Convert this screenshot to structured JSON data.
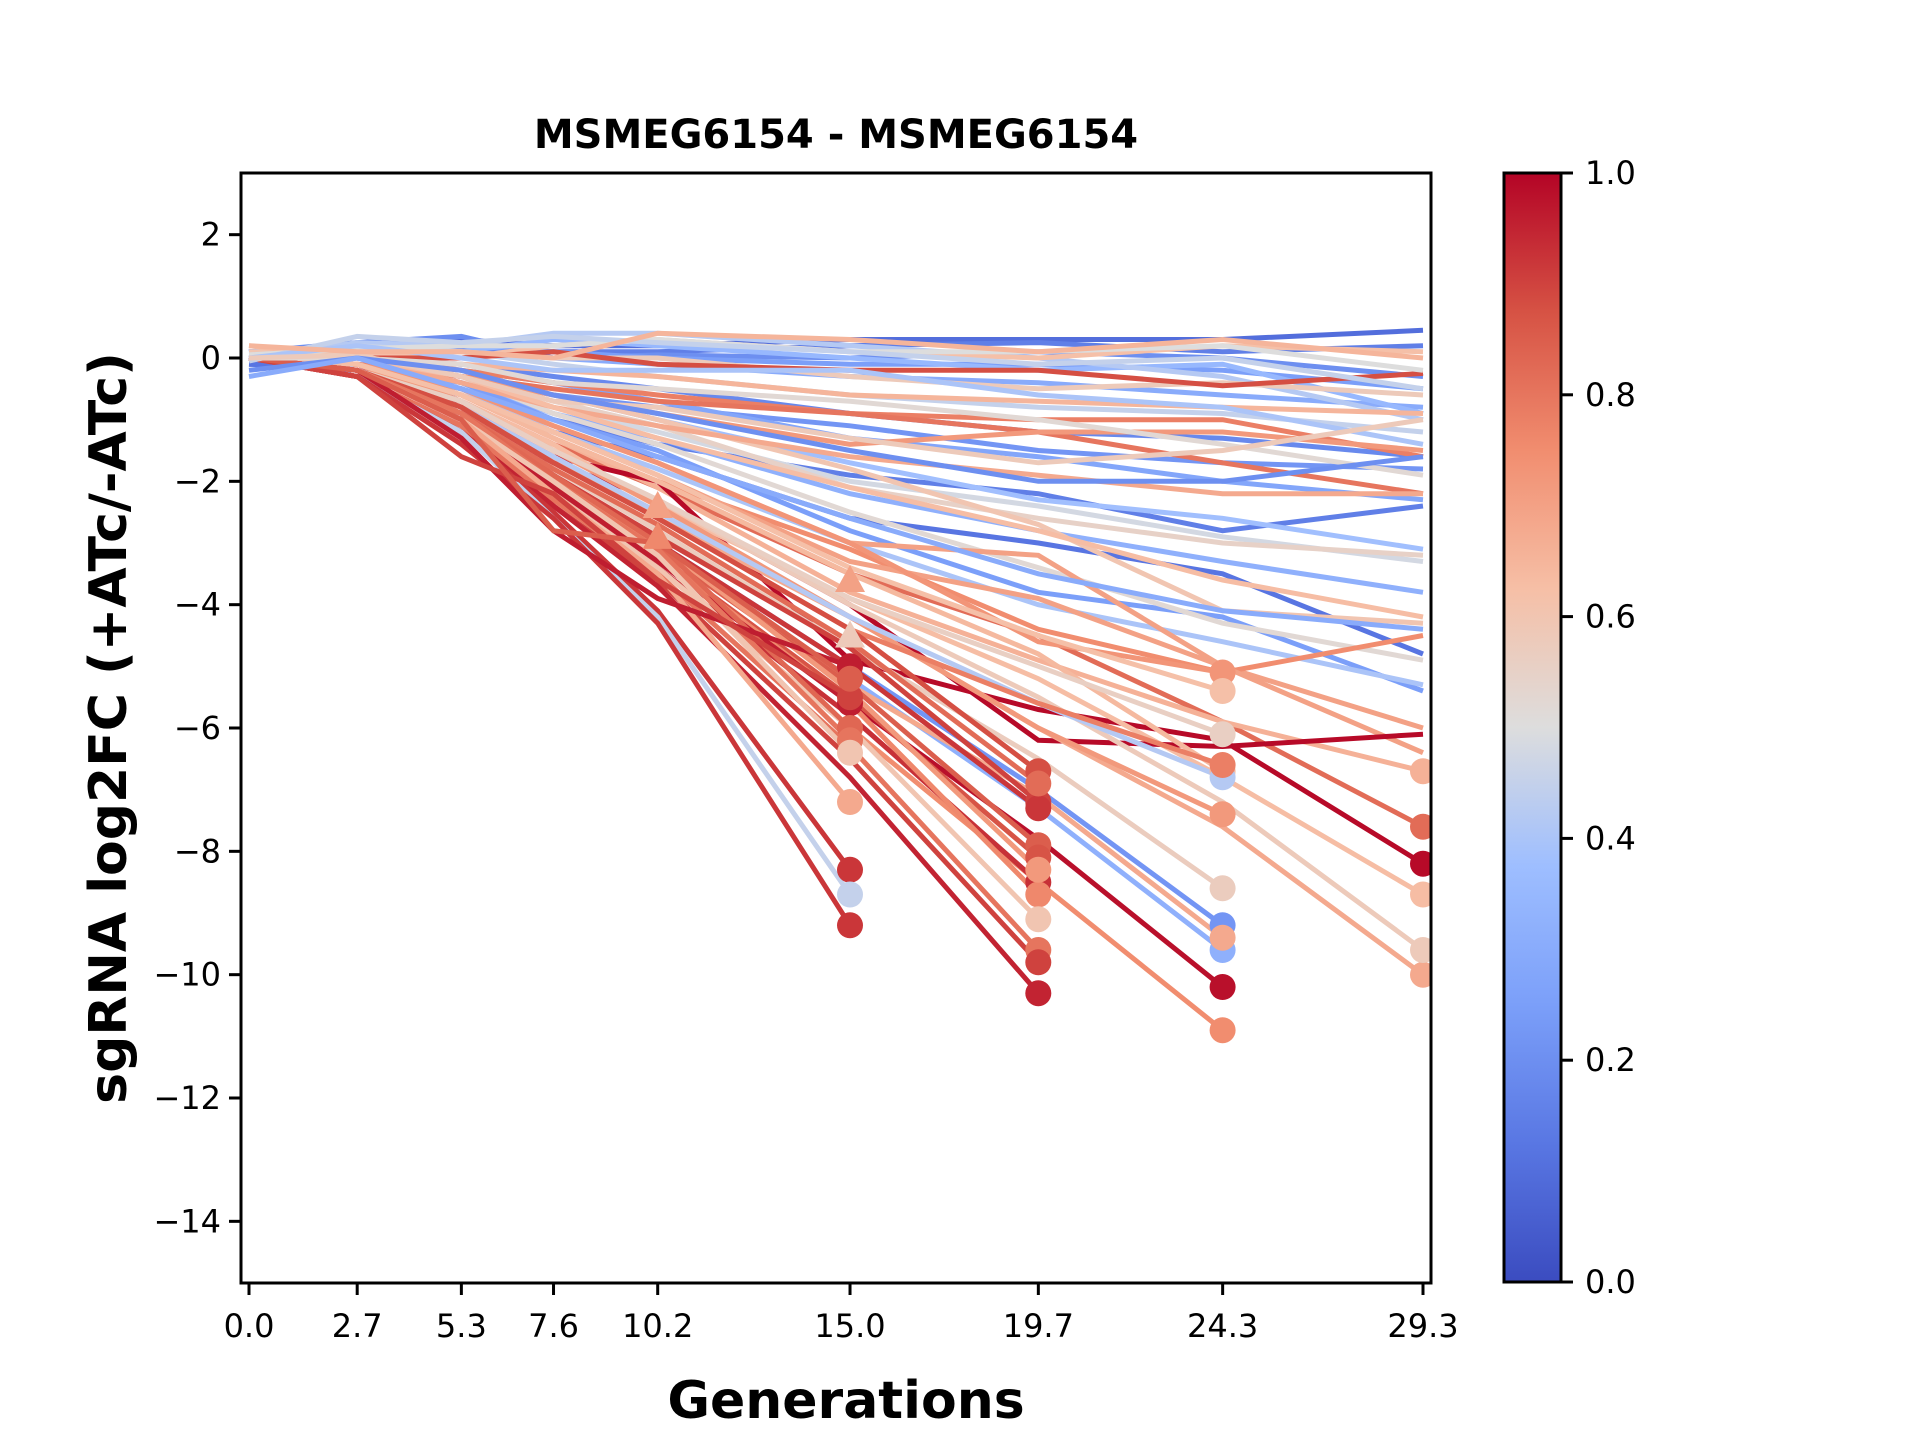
{
  "chart_data": {
    "type": "line",
    "title": "MSMEG6154 - MSMEG6154",
    "xlabel": "Generations",
    "ylabel": "sgRNA log2FC (+ATc/-ATc)",
    "x": [
      0.0,
      2.7,
      5.3,
      7.6,
      10.2,
      15.0,
      19.7,
      24.3,
      29.3
    ],
    "xticks": [
      "0.0",
      "2.7",
      "5.3",
      "7.6",
      "10.2",
      "15.0",
      "19.7",
      "24.3",
      "29.3"
    ],
    "xlim": [
      -0.2,
      29.5
    ],
    "ylim": [
      -15,
      3
    ],
    "yticks": [
      2,
      0,
      -2,
      -4,
      -6,
      -8,
      -10,
      -12,
      -14
    ],
    "ytick_labels": [
      "2",
      "0",
      "−2",
      "−4",
      "−6",
      "−8",
      "−10",
      "−12",
      "−14"
    ],
    "grid": false,
    "colorbar": {
      "colormap": "coolwarm",
      "range": [
        0.0,
        1.0
      ],
      "ticks": [
        "0.0",
        "0.2",
        "0.4",
        "0.6",
        "0.8",
        "1.0"
      ],
      "tick_values": [
        0.0,
        0.2,
        0.4,
        0.6,
        0.8,
        1.0
      ],
      "placement": "right"
    },
    "marker_legend": {
      "circle": "series endpoint (dropout)",
      "triangle": "intermediate marker"
    },
    "series": [
      {
        "c": 0.1,
        "values": [
          0.1,
          0.2,
          0.3,
          0.2,
          0.2,
          0.3,
          0.3,
          0.3,
          0.45
        ]
      },
      {
        "c": 0.15,
        "values": [
          0.0,
          0.2,
          0.15,
          0.1,
          0.1,
          0.2,
          0.25,
          0.1,
          0.2
        ]
      },
      {
        "c": 0.2,
        "values": [
          0.1,
          0.25,
          0.35,
          0.0,
          0.05,
          0.0,
          0.1,
          0.0,
          -0.3
        ]
      },
      {
        "c": 0.25,
        "values": [
          0.1,
          0.2,
          0.2,
          0.1,
          0.0,
          -0.1,
          -0.1,
          -0.2,
          -0.5
        ]
      },
      {
        "c": 0.3,
        "values": [
          0.0,
          0.1,
          0.1,
          0.0,
          -0.1,
          -0.3,
          -0.4,
          -0.6,
          -0.8
        ]
      },
      {
        "c": 0.35,
        "values": [
          0.1,
          0.2,
          0.1,
          0.3,
          0.2,
          0.0,
          -0.2,
          -0.1,
          -0.9
        ]
      },
      {
        "c": 0.42,
        "values": [
          0.0,
          0.25,
          0.2,
          0.4,
          0.4,
          0.2,
          0.0,
          -0.3,
          -1.0
        ]
      },
      {
        "c": 0.45,
        "values": [
          0.0,
          0.2,
          0.1,
          -0.1,
          -0.3,
          -0.6,
          -0.8,
          -0.9,
          -1.2
        ]
      },
      {
        "c": 0.18,
        "values": [
          0.0,
          0.0,
          -0.1,
          -0.3,
          -0.5,
          -0.9,
          -1.2,
          -1.3,
          -1.6
        ]
      },
      {
        "c": 0.22,
        "values": [
          0.0,
          -0.1,
          -0.3,
          -0.6,
          -0.8,
          -1.1,
          -1.5,
          -1.7,
          -1.8
        ]
      },
      {
        "c": 0.28,
        "values": [
          0.0,
          0.0,
          -0.2,
          -0.4,
          -0.7,
          -1.3,
          -1.6,
          -2.0,
          -2.3
        ]
      },
      {
        "c": 0.15,
        "values": [
          -0.1,
          -0.1,
          -0.5,
          -1.0,
          -1.4,
          -1.9,
          -2.2,
          -2.8,
          -2.4
        ]
      },
      {
        "c": 0.38,
        "values": [
          0.0,
          0.1,
          -0.2,
          -0.6,
          -1.0,
          -1.7,
          -2.3,
          -2.6,
          -3.1
        ]
      },
      {
        "c": 0.48,
        "values": [
          0.0,
          0.0,
          -0.3,
          -0.8,
          -1.2,
          -2.0,
          -2.4,
          -2.9,
          -3.3
        ]
      },
      {
        "c": 0.12,
        "values": [
          -0.1,
          -0.2,
          -0.6,
          -1.2,
          -1.6,
          -2.6,
          -3.0,
          -3.5,
          -4.8
        ]
      },
      {
        "c": 0.32,
        "values": [
          0.0,
          -0.1,
          -0.4,
          -0.9,
          -1.3,
          -2.2,
          -2.8,
          -3.3,
          -3.8
        ]
      },
      {
        "c": 0.55,
        "values": [
          0.0,
          0.1,
          -0.3,
          -0.7,
          -1.1,
          -2.1,
          -2.6,
          -3.0,
          -3.2
        ]
      },
      {
        "c": 0.6,
        "values": [
          0.1,
          0.1,
          -0.2,
          -0.6,
          -1.0,
          -1.8,
          -2.7,
          -4.1,
          -4.3
        ]
      },
      {
        "c": 0.25,
        "values": [
          0.0,
          -0.1,
          -0.4,
          -1.0,
          -1.5,
          -2.8,
          -3.8,
          -4.2,
          -5.4
        ]
      },
      {
        "c": 0.4,
        "values": [
          0.0,
          -0.2,
          -0.5,
          -1.2,
          -1.8,
          -3.0,
          -4.0,
          -4.6,
          -5.3
        ]
      },
      {
        "c": 0.52,
        "values": [
          0.0,
          0.0,
          -0.3,
          -0.9,
          -1.4,
          -2.5,
          -3.4,
          -4.3,
          -4.9
        ]
      },
      {
        "c": 0.62,
        "values": [
          0.0,
          0.1,
          0.0,
          0.2,
          0.3,
          0.1,
          0.0,
          0.2,
          0.1
        ]
      },
      {
        "c": 0.58,
        "values": [
          0.0,
          0.1,
          0.1,
          0.0,
          0.0,
          -0.3,
          -0.5,
          -0.4,
          -0.6
        ]
      },
      {
        "c": 0.65,
        "values": [
          0.0,
          0.0,
          -0.1,
          -0.2,
          -0.3,
          -0.6,
          -0.7,
          -0.8,
          -0.9
        ]
      },
      {
        "c": 0.88,
        "values": [
          0.0,
          0.0,
          0.0,
          0.1,
          -0.1,
          -0.2,
          -0.2,
          -0.45,
          -0.25
        ]
      },
      {
        "c": 0.78,
        "values": [
          0.0,
          0.0,
          -0.2,
          -0.4,
          -0.6,
          -0.9,
          -1.0,
          -1.0,
          -1.6
        ]
      },
      {
        "c": 0.8,
        "values": [
          0.0,
          -0.1,
          -0.3,
          -0.5,
          -0.7,
          -0.9,
          -1.2,
          -1.7,
          -2.2
        ]
      },
      {
        "c": 0.72,
        "values": [
          0.0,
          0.0,
          -0.3,
          -0.6,
          -0.9,
          -1.4,
          -1.2,
          -1.2,
          -1.5
        ]
      },
      {
        "c": 0.68,
        "values": [
          0.0,
          0.0,
          -0.4,
          -0.8,
          -1.1,
          -1.6,
          -1.9,
          -2.2,
          -2.2
        ]
      },
      {
        "c": 0.63,
        "values": [
          0.2,
          0.0,
          -0.3,
          -0.8,
          -1.3,
          -2.1,
          -2.8,
          -3.6,
          -4.2
        ]
      },
      {
        "c": 0.7,
        "values": [
          0.0,
          -0.1,
          -0.5,
          -1.1,
          -1.7,
          -3.0,
          -3.2,
          -5.0,
          -6.0
        ]
      },
      {
        "c": 0.75,
        "values": [
          0.0,
          -0.1,
          -0.6,
          -1.3,
          -2.0,
          -3.1,
          -4.4,
          -5.1,
          -4.5
        ]
      },
      {
        "c": 0.82,
        "values": [
          0.0,
          -0.2,
          -0.7,
          -1.4,
          -2.1,
          -3.5,
          -4.5,
          -5.9,
          -7.6
        ]
      },
      {
        "c": 0.7,
        "values": [
          0.0,
          -0.1,
          -0.6,
          -1.2,
          -1.9,
          -3.3,
          -3.9,
          -5.0,
          -6.4
        ]
      },
      {
        "c": 0.66,
        "values": [
          0.0,
          -0.1,
          -0.6,
          -1.3,
          -2.1,
          -3.8,
          -4.9,
          -5.9,
          -6.7
        ]
      },
      {
        "c": 0.99,
        "values": [
          0.0,
          -0.1,
          -0.8,
          -1.6,
          -2.0,
          -4.9,
          -5.7,
          -6.2,
          -8.2
        ]
      },
      {
        "c": 0.99,
        "values": [
          0.0,
          -0.2,
          -0.9,
          -1.7,
          -2.3,
          -4.0,
          -6.2,
          -6.3,
          -6.1
        ]
      },
      {
        "c": 0.63,
        "values": [
          0.0,
          -0.1,
          -0.7,
          -1.4,
          -2.4,
          -3.9,
          -5.2,
          -6.8,
          -8.7
        ]
      },
      {
        "c": 0.68,
        "values": [
          0.0,
          -0.2,
          -0.8,
          -1.6,
          -2.6,
          -4.2,
          -6.0,
          -7.6,
          -10.0
        ]
      },
      {
        "c": 0.58,
        "values": [
          0.0,
          -0.1,
          -0.7,
          -1.5,
          -2.3,
          -4.0,
          -5.5,
          -7.2,
          -9.6
        ]
      },
      {
        "c": 0.64,
        "values": [
          0.0,
          -0.1,
          -0.6,
          -1.3,
          -2.0,
          -3.5,
          -4.8,
          -6.7
        ]
      },
      {
        "c": 0.72,
        "values": [
          0.0,
          -0.1,
          -0.7,
          -1.5,
          -2.4,
          -4.2,
          -6.0,
          -7.4
        ]
      },
      {
        "c": 0.73,
        "values": [
          0.0,
          -0.1,
          -0.5,
          -1.1,
          -1.7,
          -3.0,
          -4.6,
          -5.1
        ]
      },
      {
        "c": 0.62,
        "values": [
          0.0,
          -0.1,
          -0.6,
          -1.2,
          -1.9,
          -3.4,
          -4.5,
          -5.4
        ]
      },
      {
        "c": 0.56,
        "values": [
          0.0,
          -0.2,
          -0.7,
          -1.5,
          -2.3,
          -3.9,
          -5.0,
          -6.1
        ]
      },
      {
        "c": 0.42,
        "values": [
          0.0,
          -0.2,
          -0.8,
          -1.6,
          -2.5,
          -4.2,
          -5.6,
          -6.8
        ]
      },
      {
        "c": 0.78,
        "values": [
          0.0,
          -0.2,
          -0.8,
          -1.7,
          -2.6,
          -4.4,
          -5.6,
          -6.6
        ]
      },
      {
        "c": 0.57,
        "values": [
          0.0,
          -0.2,
          -0.9,
          -1.8,
          -2.8,
          -4.7,
          -6.5,
          -8.6
        ]
      },
      {
        "c": 0.22,
        "values": [
          0.0,
          -0.2,
          -0.9,
          -1.9,
          -3.0,
          -5.0,
          -7.0,
          -9.2
        ]
      },
      {
        "c": 0.32,
        "values": [
          0.0,
          -0.2,
          -1.0,
          -2.0,
          -3.1,
          -5.2,
          -7.3,
          -9.6
        ]
      },
      {
        "c": 0.68,
        "values": [
          0.0,
          -0.2,
          -0.9,
          -1.9,
          -3.0,
          -5.3,
          -7.1,
          -9.4
        ]
      },
      {
        "c": 0.98,
        "values": [
          0.0,
          -0.2,
          -1.0,
          -2.1,
          -3.2,
          -5.6,
          -7.8,
          -10.2
        ]
      },
      {
        "c": 0.75,
        "values": [
          0.0,
          -0.3,
          -1.1,
          -2.2,
          -3.4,
          -6.0,
          -8.5,
          -10.9
        ]
      },
      {
        "c": 0.88,
        "values": [
          0.0,
          -0.2,
          -0.8,
          -1.7,
          -2.6,
          -4.4,
          -6.7
        ]
      },
      {
        "c": 0.9,
        "values": [
          0.0,
          -0.2,
          -0.9,
          -1.9,
          -2.9,
          -4.7,
          -7.2
        ]
      },
      {
        "c": 0.92,
        "values": [
          0.0,
          -0.2,
          -0.9,
          -1.9,
          -3.0,
          -5.0,
          -7.3
        ]
      },
      {
        "c": 0.85,
        "values": [
          0.0,
          -0.2,
          -1.0,
          -2.0,
          -3.1,
          -5.3,
          -7.9
        ]
      },
      {
        "c": 0.87,
        "values": [
          0.0,
          -0.2,
          -1.0,
          -2.1,
          -3.2,
          -5.5,
          -8.1
        ]
      },
      {
        "c": 0.93,
        "values": [
          0.0,
          -0.3,
          -1.1,
          -2.2,
          -3.4,
          -5.8,
          -8.5
        ]
      },
      {
        "c": 0.76,
        "values": [
          0.0,
          -0.2,
          -1.0,
          -2.1,
          -3.2,
          -5.6,
          -8.7
        ]
      },
      {
        "c": 0.6,
        "values": [
          0.0,
          -0.2,
          -1.0,
          -2.2,
          -3.4,
          -6.0,
          -9.1
        ]
      },
      {
        "c": 0.8,
        "values": [
          0.0,
          -0.3,
          -1.1,
          -2.3,
          -3.5,
          -6.3,
          -9.6
        ]
      },
      {
        "c": 0.9,
        "values": [
          0.0,
          -0.3,
          -1.2,
          -2.4,
          -3.6,
          -6.5,
          -9.8
        ]
      },
      {
        "c": 0.95,
        "values": [
          0.0,
          -0.3,
          -1.2,
          -2.4,
          -3.7,
          -6.8,
          -10.3
        ]
      },
      {
        "c": 0.72,
        "values": [
          0.0,
          -0.2,
          -1.0,
          -2.0,
          -3.0,
          -5.4,
          -8.3
        ]
      },
      {
        "c": 0.82,
        "values": [
          0.0,
          -0.2,
          -0.9,
          -1.8,
          -2.7,
          -4.6,
          -6.9
        ]
      },
      {
        "c": 0.96,
        "values": [
          0.0,
          -0.2,
          -1.0,
          -2.1,
          -3.3,
          -5.6
        ]
      },
      {
        "c": 0.83,
        "values": [
          0.0,
          -0.2,
          -0.9,
          -1.9,
          -3.0,
          -6.0
        ]
      },
      {
        "c": 0.8,
        "values": [
          0.0,
          -0.2,
          -0.9,
          -2.0,
          -3.1,
          -6.2
        ]
      },
      {
        "c": 0.6,
        "values": [
          0.0,
          -0.2,
          -1.0,
          -2.0,
          -3.2,
          -6.4
        ]
      },
      {
        "c": 0.68,
        "values": [
          0.0,
          -0.2,
          -1.0,
          -2.2,
          -3.5,
          -7.2
        ]
      },
      {
        "c": 0.92,
        "values": [
          0.0,
          -0.3,
          -1.2,
          -2.5,
          -4.1,
          -8.3
        ]
      },
      {
        "c": 0.45,
        "values": [
          0.0,
          -0.3,
          -1.2,
          -2.6,
          -4.2,
          -8.7
        ]
      },
      {
        "c": 0.92,
        "values": [
          0.0,
          -0.3,
          -1.4,
          -2.6,
          -4.3,
          -9.2
        ]
      },
      {
        "c": 0.96,
        "values": [
          0.0,
          -0.2,
          -1.3,
          -2.8,
          -3.9,
          -5.0
        ]
      },
      {
        "c": 0.9,
        "values": [
          0.0,
          -0.3,
          -1.6,
          -2.2,
          -3.6,
          -5.5
        ]
      },
      {
        "c": 0.85,
        "values": [
          0.0,
          -0.2,
          -1.0,
          -2.8,
          -3.0,
          -5.2
        ]
      },
      {
        "c": 0.5,
        "values": [
          0.05,
          0.15,
          0.2,
          0.2,
          0.3,
          0.1,
          0.1,
          0.2,
          -0.2
        ]
      },
      {
        "c": 0.45,
        "values": [
          -0.05,
          0.35,
          0.25,
          0.35,
          0.25,
          0.1,
          -0.1,
          0.0,
          -0.5
        ]
      },
      {
        "c": 0.4,
        "values": [
          0.0,
          0.2,
          0.0,
          -0.2,
          -0.2,
          -0.2,
          -0.6,
          -0.8,
          -1.4
        ]
      },
      {
        "c": 0.52,
        "values": [
          0.0,
          0.0,
          -0.1,
          -0.4,
          -0.5,
          -0.7,
          -1.0,
          -1.4,
          -1.9
        ]
      },
      {
        "c": 0.58,
        "values": [
          0.0,
          0.05,
          -0.3,
          -0.7,
          -0.8,
          -1.3,
          -1.7,
          -1.5,
          -1.0
        ]
      },
      {
        "c": 0.65,
        "values": [
          0.2,
          0.1,
          0.1,
          0.0,
          0.4,
          0.3,
          0.1,
          0.3,
          0.0
        ]
      },
      {
        "c": 0.2,
        "values": [
          -0.2,
          0.0,
          -0.2,
          -0.6,
          -0.9,
          -1.5,
          -2.0,
          -2.0,
          -1.6
        ]
      },
      {
        "c": 0.3,
        "values": [
          -0.3,
          0.0,
          -0.5,
          -1.0,
          -1.6,
          -2.6,
          -3.5,
          -4.1,
          -4.4
        ]
      }
    ],
    "triangles": [
      {
        "x": 10.2,
        "y": -2.4,
        "c": 0.7
      },
      {
        "x": 10.2,
        "y": -2.9,
        "c": 0.76
      },
      {
        "x": 15.0,
        "y": -3.6,
        "c": 0.7
      },
      {
        "x": 15.0,
        "y": -4.5,
        "c": 0.58
      }
    ]
  }
}
